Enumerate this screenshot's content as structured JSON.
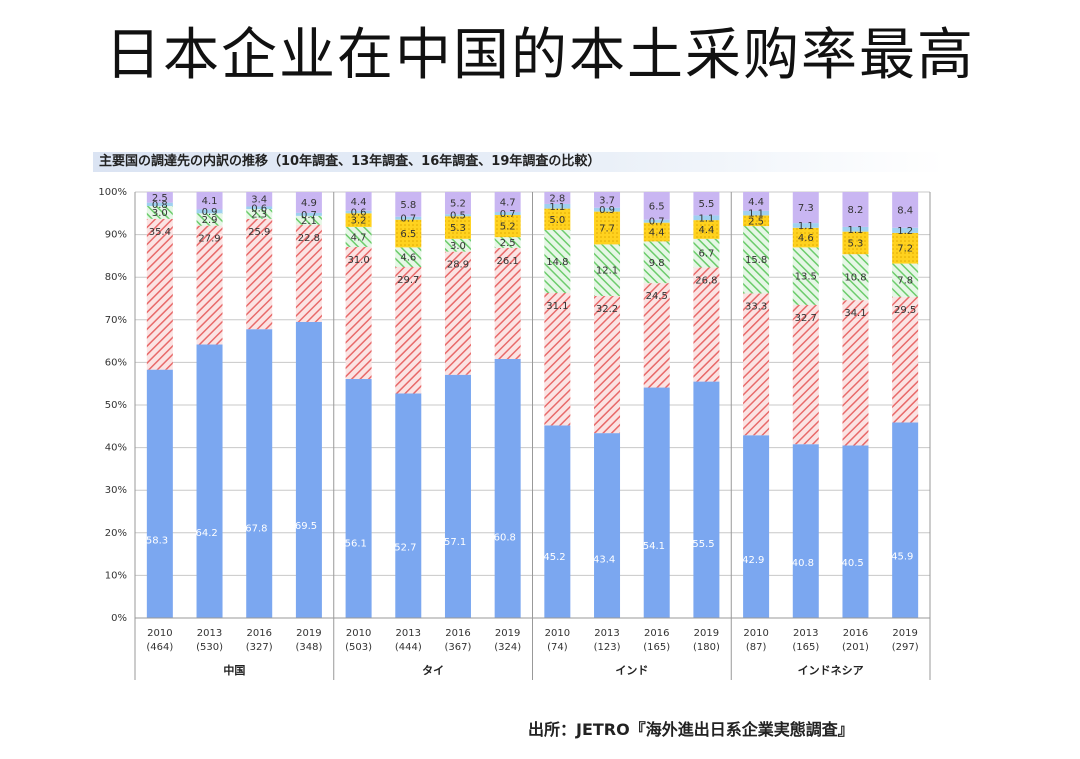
{
  "page_title": "日本企业在中国的本土采购率最高",
  "source_note": "出所：JETRO『海外進出日系企業実態調査』",
  "chart_data": {
    "type": "bar",
    "stacked": true,
    "title": "主要国の調達先の内訳の推移（10年調査、13年調査、16年調査、19年調査の比較）",
    "ylim": [
      0,
      100
    ],
    "y_ticks": [
      "0%",
      "10%",
      "20%",
      "30%",
      "40%",
      "50%",
      "60%",
      "70%",
      "80%",
      "90%",
      "100%"
    ],
    "grid": true,
    "groups": [
      "中国",
      "タイ",
      "インド",
      "インドネシア"
    ],
    "categories": [
      "2010",
      "2013",
      "2016",
      "2019",
      "2010",
      "2013",
      "2016",
      "2019",
      "2010",
      "2013",
      "2016",
      "2019",
      "2010",
      "2013",
      "2016",
      "2019"
    ],
    "sample_sizes": [
      "(464)",
      "(530)",
      "(327)",
      "(348)",
      "(503)",
      "(444)",
      "(367)",
      "(324)",
      "(74)",
      "(123)",
      "(165)",
      "(180)",
      "(87)",
      "(165)",
      "(201)",
      "(297)"
    ],
    "series": [
      {
        "color": "#7ba7f0",
        "pattern": "solid",
        "values": [
          58.3,
          64.2,
          67.8,
          69.5,
          56.1,
          52.7,
          57.1,
          60.8,
          45.2,
          43.4,
          54.1,
          55.5,
          42.9,
          40.8,
          40.5,
          45.9
        ]
      },
      {
        "color": "#f08a8a",
        "pattern": "hatch",
        "values": [
          35.4,
          27.9,
          25.9,
          22.8,
          31.0,
          29.7,
          28.9,
          26.1,
          31.1,
          32.2,
          24.5,
          26.8,
          33.3,
          32.7,
          34.1,
          29.5
        ]
      },
      {
        "color": "#8edb8e",
        "pattern": "hatch",
        "values": [
          3.0,
          2.9,
          2.3,
          2.1,
          4.7,
          4.6,
          3.0,
          2.5,
          14.8,
          12.1,
          9.8,
          6.7,
          15.8,
          13.5,
          10.8,
          7.8
        ]
      },
      {
        "color": "#ffd21f",
        "pattern": "dots",
        "values": [
          0.0,
          0.0,
          0.0,
          0.0,
          3.2,
          6.5,
          5.3,
          5.2,
          5.0,
          7.7,
          4.4,
          4.4,
          2.5,
          4.6,
          5.3,
          7.2
        ]
      },
      {
        "color": "#9fd0f0",
        "pattern": "solid",
        "values": [
          0.8,
          0.9,
          0.6,
          0.7,
          0.6,
          0.7,
          0.5,
          0.7,
          1.1,
          0.9,
          0.7,
          1.1,
          1.1,
          1.1,
          1.1,
          1.2
        ]
      },
      {
        "color": "#c9b6f2",
        "pattern": "solid",
        "values": [
          2.5,
          4.1,
          3.4,
          4.9,
          4.4,
          5.8,
          5.2,
          4.7,
          2.8,
          3.7,
          6.5,
          5.5,
          4.4,
          7.3,
          8.2,
          8.4
        ]
      }
    ]
  }
}
